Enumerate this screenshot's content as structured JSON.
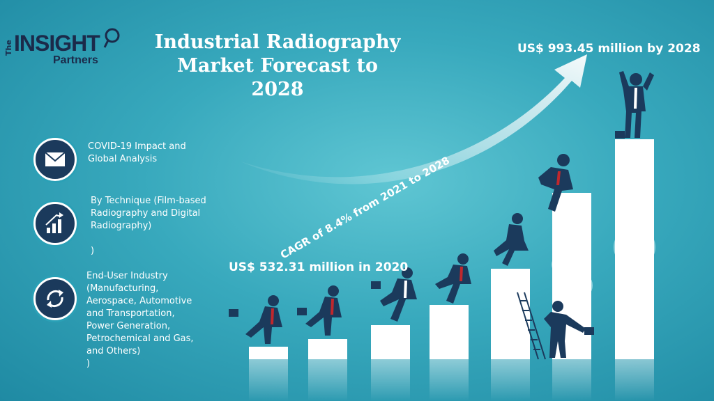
{
  "brand": {
    "the": "The",
    "name": "INSIGHT",
    "partners": "Partners"
  },
  "title": {
    "line1": "Industrial Radiography",
    "line2": "Market Forecast to 2028"
  },
  "values": {
    "final": "US$ 993.45 million by 2028",
    "start": "US$ 532.31 million in 2020",
    "cagr": "CAGR of 8.4% from 2021 to 2028"
  },
  "menu": [
    {
      "icon": "email-icon",
      "lines": [
        "COVID-19 Impact and",
        "Global Analysis"
      ]
    },
    {
      "icon": "growth-chart-icon",
      "lines": [
        "By Technique (Film-based",
        "Radiography and Digital",
        "Radiography)",
        "",
        ")"
      ]
    },
    {
      "icon": "refresh-arrows-icon",
      "lines": [
        "End-User Industry",
        "(Manufacturing,",
        "Aerospace, Automotive",
        "and Transportation,",
        "Power Generation,",
        "Petrochemical and Gas,",
        "and Others)",
        ")"
      ]
    }
  ],
  "colors": {
    "background": "#38a9bd",
    "navy": "#1b3a5c",
    "accent_red": "#c0282d",
    "white": "#ffffff"
  }
}
